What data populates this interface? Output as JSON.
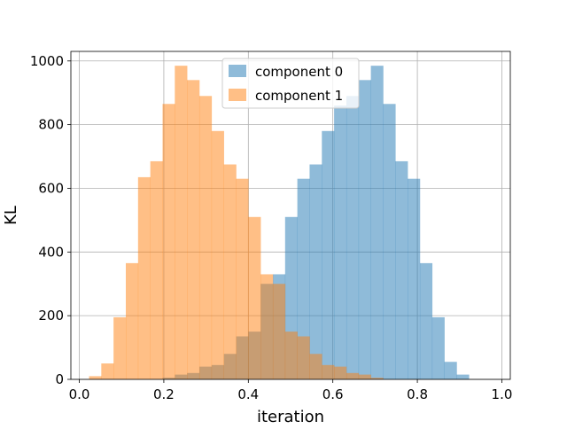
{
  "chart_data": {
    "type": "bar",
    "title": "",
    "xlabel": "iteration",
    "ylabel": "KL",
    "xlim": [
      -0.02,
      1.02
    ],
    "ylim": [
      0,
      1030
    ],
    "grid": true,
    "legend_position": "top-center",
    "x_ticks": [
      0.0,
      0.2,
      0.4,
      0.6,
      0.8,
      1.0
    ],
    "x_tick_labels": [
      "0.0",
      "0.2",
      "0.4",
      "0.6",
      "0.8",
      "1.0"
    ],
    "y_ticks": [
      0,
      200,
      400,
      600,
      800,
      1000
    ],
    "y_tick_labels": [
      "0",
      "200",
      "400",
      "600",
      "800",
      "1000"
    ],
    "bin_edges": [
      0.023,
      0.052,
      0.081,
      0.11,
      0.139,
      0.168,
      0.197,
      0.226,
      0.255,
      0.284,
      0.313,
      0.342,
      0.371,
      0.4,
      0.429,
      0.458,
      0.487,
      0.516,
      0.545,
      0.574,
      0.603,
      0.632,
      0.661,
      0.69,
      0.719,
      0.748,
      0.777,
      0.806,
      0.835,
      0.864,
      0.893,
      0.922,
      0.951,
      0.98
    ],
    "series": [
      {
        "name": "component 0",
        "color": "#1f77b4",
        "opacity": 0.5,
        "values": [
          0,
          0,
          0,
          0,
          0,
          0,
          5,
          15,
          20,
          40,
          45,
          80,
          135,
          150,
          300,
          330,
          510,
          630,
          675,
          780,
          860,
          890,
          940,
          985,
          865,
          685,
          630,
          365,
          195,
          55,
          15,
          0,
          0
        ]
      },
      {
        "name": "component 1",
        "color": "#ff7f0e",
        "opacity": 0.5,
        "values": [
          10,
          50,
          195,
          365,
          635,
          685,
          865,
          985,
          940,
          890,
          780,
          675,
          630,
          510,
          330,
          300,
          150,
          135,
          80,
          45,
          40,
          20,
          15,
          5,
          0,
          0,
          0,
          0,
          0,
          0,
          0,
          0,
          0
        ]
      }
    ]
  }
}
